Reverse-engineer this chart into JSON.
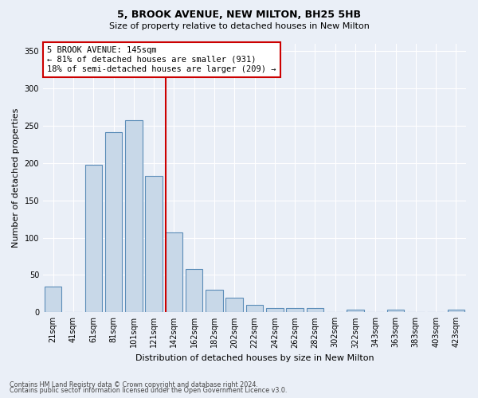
{
  "title_line1": "5, BROOK AVENUE, NEW MILTON, BH25 5HB",
  "title_line2": "Size of property relative to detached houses in New Milton",
  "xlabel": "Distribution of detached houses by size in New Milton",
  "ylabel": "Number of detached properties",
  "categories": [
    "21sqm",
    "41sqm",
    "61sqm",
    "81sqm",
    "101sqm",
    "121sqm",
    "142sqm",
    "162sqm",
    "182sqm",
    "202sqm",
    "222sqm",
    "242sqm",
    "262sqm",
    "282sqm",
    "302sqm",
    "322sqm",
    "343sqm",
    "363sqm",
    "383sqm",
    "403sqm",
    "423sqm"
  ],
  "values": [
    35,
    0,
    198,
    242,
    258,
    183,
    107,
    58,
    30,
    20,
    10,
    6,
    6,
    6,
    0,
    4,
    0,
    3,
    0,
    0,
    3
  ],
  "bar_color": "#c8d8e8",
  "bar_edge_color": "#5b8db8",
  "bar_edge_width": 0.8,
  "vline_x_index": 6,
  "vline_color": "#cc0000",
  "annotation_text": "5 BROOK AVENUE: 145sqm\n← 81% of detached houses are smaller (931)\n18% of semi-detached houses are larger (209) →",
  "annotation_box_color": "#ffffff",
  "annotation_box_edge": "#cc0000",
  "ylim": [
    0,
    360
  ],
  "yticks": [
    0,
    50,
    100,
    150,
    200,
    250,
    300,
    350
  ],
  "footer1": "Contains HM Land Registry data © Crown copyright and database right 2024.",
  "footer2": "Contains public sector information licensed under the Open Government Licence v3.0.",
  "bg_color": "#eaeff7",
  "plot_bg_color": "#eaeff7",
  "title_fontsize": 9,
  "subtitle_fontsize": 8,
  "xlabel_fontsize": 8,
  "ylabel_fontsize": 8,
  "tick_fontsize": 7,
  "footer_fontsize": 5.8
}
